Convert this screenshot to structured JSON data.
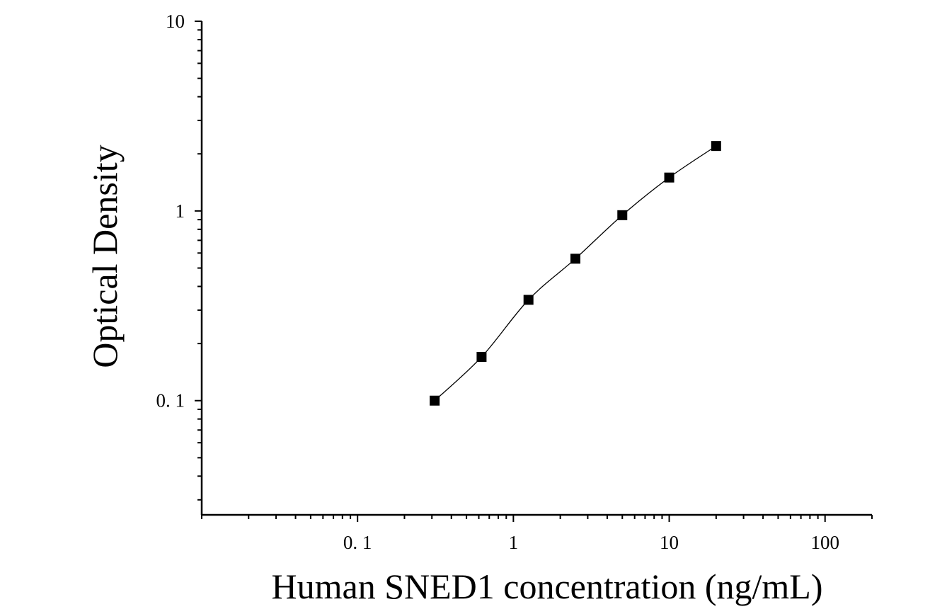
{
  "chart_data": {
    "type": "scatter",
    "title": "",
    "xlabel": "Human SNED1 concentration (ng/mL)",
    "ylabel": "Optical Density",
    "x_scale": "log",
    "y_scale": "log",
    "xlim": [
      0.01,
      200
    ],
    "ylim": [
      0.025,
      10
    ],
    "x_tick_labels": [
      "0. 1",
      "1",
      "10",
      "100"
    ],
    "x_tick_values": [
      0.1,
      1,
      10,
      100
    ],
    "y_tick_labels": [
      "0. 1",
      "1",
      "10"
    ],
    "y_tick_values": [
      0.1,
      1,
      10
    ],
    "grid": false,
    "legend": "none",
    "marker": "square",
    "color": "#000000",
    "series": [
      {
        "x": [
          0.3125,
          0.625,
          1.25,
          2.5,
          5,
          10,
          20
        ],
        "y": [
          0.1,
          0.17,
          0.34,
          0.56,
          0.95,
          1.5,
          2.2
        ],
        "fit_line": true
      }
    ]
  }
}
